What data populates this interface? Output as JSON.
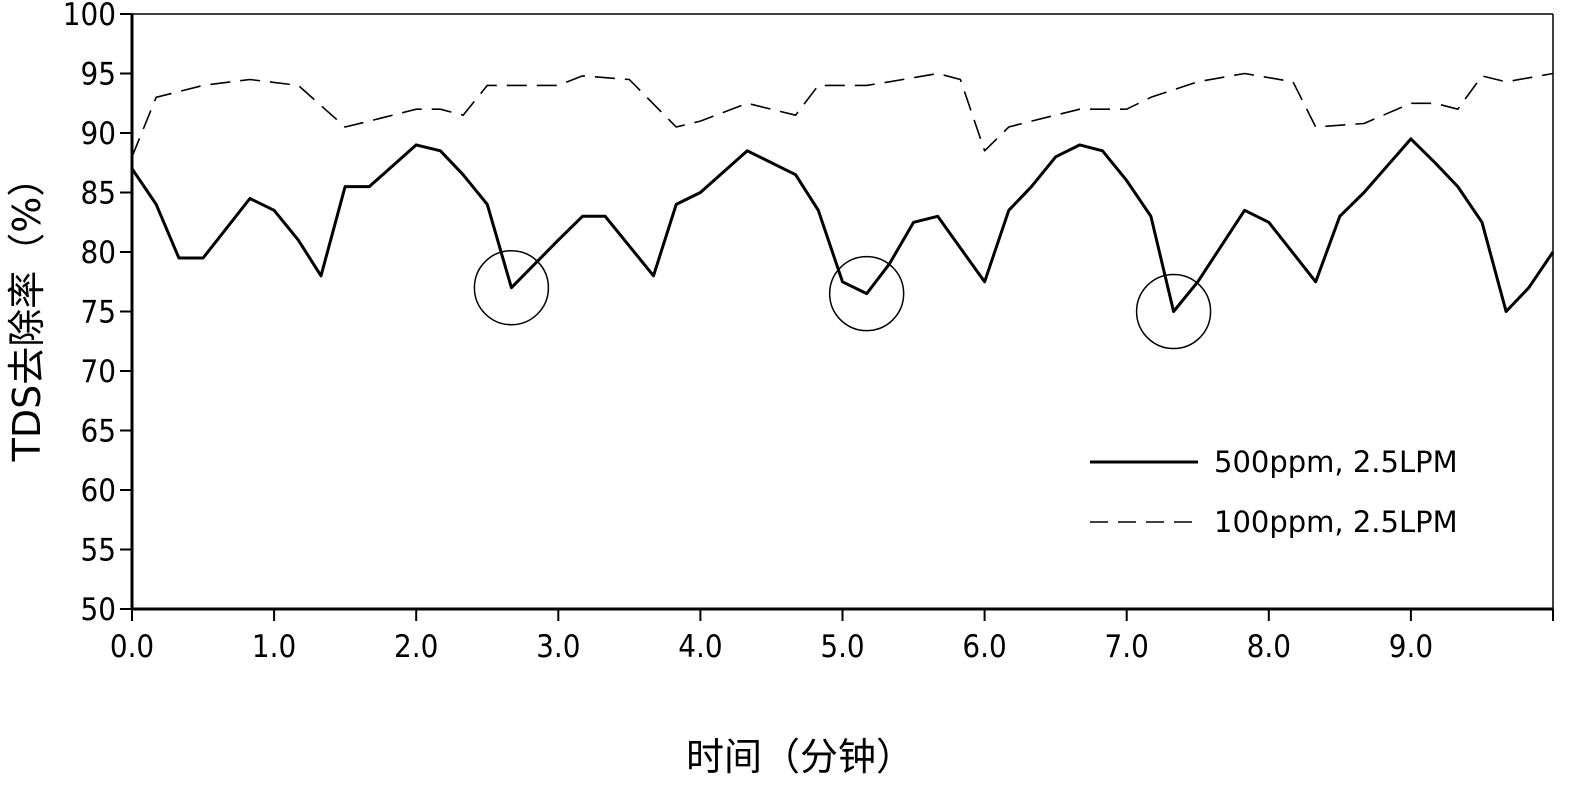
{
  "chart_data": {
    "type": "line",
    "title": "",
    "xlabel": "时间（分钟）",
    "ylabel": "TDS去除率（%）",
    "xlim": [
      0,
      10
    ],
    "ylim": [
      50,
      100
    ],
    "x_ticks": [
      "0.0",
      "1.0",
      "2.0",
      "3.0",
      "4.0",
      "5.0",
      "6.0",
      "7.0",
      "8.0",
      "9.0"
    ],
    "y_ticks": [
      "50",
      "55",
      "60",
      "65",
      "70",
      "75",
      "80",
      "85",
      "90",
      "95",
      "100"
    ],
    "grid": false,
    "legend_position": "bottom-right",
    "series": [
      {
        "name": "500ppm, 2.5LPM",
        "style": "solid",
        "color": "#000000",
        "x": [
          0.0,
          0.17,
          0.33,
          0.5,
          0.83,
          1.0,
          1.17,
          1.33,
          1.5,
          1.67,
          2.0,
          2.17,
          2.33,
          2.5,
          2.67,
          3.0,
          3.17,
          3.33,
          3.67,
          3.83,
          4.0,
          4.33,
          4.67,
          4.83,
          5.0,
          5.17,
          5.33,
          5.5,
          5.67,
          6.0,
          6.17,
          6.33,
          6.5,
          6.67,
          6.83,
          7.0,
          7.17,
          7.33,
          7.5,
          7.83,
          8.0,
          8.33,
          8.5,
          8.67,
          9.0,
          9.17,
          9.33,
          9.5,
          9.67,
          9.83,
          10.0
        ],
        "y": [
          87.0,
          84.0,
          79.5,
          79.5,
          84.5,
          83.5,
          81.0,
          78.0,
          85.5,
          85.5,
          89.0,
          88.5,
          86.5,
          84.0,
          77.0,
          81.0,
          83.0,
          83.0,
          78.0,
          84.0,
          85.0,
          88.5,
          86.5,
          83.5,
          77.5,
          76.5,
          79.0,
          82.5,
          83.0,
          77.5,
          83.5,
          85.5,
          88.0,
          89.0,
          88.5,
          86.0,
          83.0,
          75.0,
          77.5,
          83.5,
          82.5,
          77.5,
          83.0,
          85.0,
          89.5,
          87.5,
          85.5,
          82.5,
          75.0,
          77.0,
          80.0
        ]
      },
      {
        "name": "100ppm, 2.5LPM",
        "style": "dashed",
        "color": "#000000",
        "x": [
          0.0,
          0.17,
          0.5,
          0.83,
          1.17,
          1.5,
          1.67,
          2.0,
          2.17,
          2.33,
          2.5,
          3.0,
          3.17,
          3.5,
          3.83,
          4.0,
          4.33,
          4.67,
          4.83,
          5.0,
          5.17,
          5.33,
          5.67,
          5.83,
          6.0,
          6.17,
          6.33,
          6.67,
          7.0,
          7.17,
          7.5,
          7.83,
          8.17,
          8.33,
          8.67,
          9.0,
          9.17,
          9.33,
          9.5,
          9.67,
          10.0
        ],
        "y": [
          88.0,
          93.0,
          94.0,
          94.5,
          94.0,
          90.5,
          91.0,
          92.0,
          92.0,
          91.5,
          94.0,
          94.0,
          94.8,
          94.5,
          90.5,
          91.0,
          92.5,
          91.5,
          94.0,
          94.0,
          94.0,
          94.3,
          95.0,
          94.5,
          88.5,
          90.5,
          91.0,
          92.0,
          92.0,
          93.0,
          94.3,
          95.0,
          94.3,
          90.5,
          90.8,
          92.5,
          92.5,
          92.0,
          94.8,
          94.3,
          95.0
        ]
      }
    ],
    "annotations": [
      {
        "shape": "circle",
        "x": 2.67,
        "y": 77.0
      },
      {
        "shape": "circle",
        "x": 5.17,
        "y": 76.5
      },
      {
        "shape": "circle",
        "x": 7.33,
        "y": 75.0
      }
    ]
  }
}
